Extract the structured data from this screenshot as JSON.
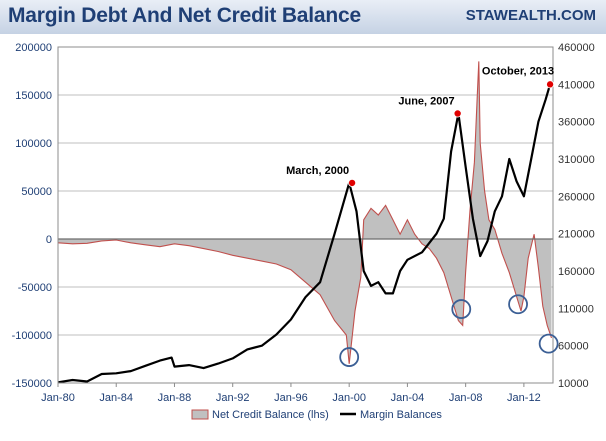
{
  "chart_data": {
    "type": "line",
    "title": "Margin Debt And Net Credit Balance",
    "watermark": "STAWEALTH.COM",
    "x_ticks": [
      "Jan-80",
      "Jan-84",
      "Jan-88",
      "Jan-92",
      "Jan-96",
      "Jan-00",
      "Jan-04",
      "Jan-08",
      "Jan-12"
    ],
    "x_tick_years": [
      1980,
      1984,
      1988,
      1992,
      1996,
      2000,
      2004,
      2008,
      2012
    ],
    "x_range": [
      1980,
      2014
    ],
    "y_left": {
      "ticks": [
        "200000",
        "150000",
        "100000",
        "50000",
        "0",
        "-50000",
        "-100000",
        "-150000"
      ],
      "tick_values": [
        200000,
        150000,
        100000,
        50000,
        0,
        -50000,
        -100000,
        -150000
      ],
      "range": [
        -150000,
        200000
      ]
    },
    "y_right": {
      "ticks": [
        "460000",
        "410000",
        "360000",
        "310000",
        "260000",
        "210000",
        "160000",
        "110000",
        "60000",
        "10000"
      ],
      "tick_values": [
        460000,
        410000,
        360000,
        310000,
        260000,
        210000,
        160000,
        110000,
        60000,
        10000
      ],
      "range": [
        10000,
        460000
      ]
    },
    "series": [
      {
        "name": "Net Credit Balance (lhs)",
        "axis": "left",
        "style": "area",
        "color": "#c0504d",
        "fill": "#c0c0c0",
        "points": [
          [
            1980.0,
            -4000
          ],
          [
            1981.0,
            -5000
          ],
          [
            1982.0,
            -4500
          ],
          [
            1983.0,
            -2000
          ],
          [
            1984.0,
            -1000
          ],
          [
            1985.0,
            -4000
          ],
          [
            1986.0,
            -6000
          ],
          [
            1987.0,
            -8000
          ],
          [
            1988.0,
            -5000
          ],
          [
            1989.0,
            -7000
          ],
          [
            1990.0,
            -10000
          ],
          [
            1991.0,
            -13000
          ],
          [
            1992.0,
            -17000
          ],
          [
            1993.0,
            -20000
          ],
          [
            1994.0,
            -23000
          ],
          [
            1995.0,
            -26000
          ],
          [
            1996.0,
            -32000
          ],
          [
            1997.0,
            -45000
          ],
          [
            1998.0,
            -58000
          ],
          [
            1999.0,
            -85000
          ],
          [
            1999.8,
            -100000
          ],
          [
            2000.0,
            -130000
          ],
          [
            2000.4,
            -75000
          ],
          [
            2000.8,
            -40000
          ],
          [
            2001.0,
            20000
          ],
          [
            2001.5,
            32000
          ],
          [
            2002.0,
            25000
          ],
          [
            2002.5,
            35000
          ],
          [
            2003.0,
            20000
          ],
          [
            2003.5,
            5000
          ],
          [
            2004.0,
            20000
          ],
          [
            2004.5,
            5000
          ],
          [
            2005.0,
            -5000
          ],
          [
            2005.5,
            -10000
          ],
          [
            2006.0,
            -20000
          ],
          [
            2006.5,
            -35000
          ],
          [
            2007.0,
            -60000
          ],
          [
            2007.5,
            -85000
          ],
          [
            2007.8,
            -90000
          ],
          [
            2008.0,
            -35000
          ],
          [
            2008.3,
            30000
          ],
          [
            2008.6,
            80000
          ],
          [
            2008.8,
            150000
          ],
          [
            2008.9,
            185000
          ],
          [
            2009.0,
            100000
          ],
          [
            2009.3,
            50000
          ],
          [
            2009.6,
            20000
          ],
          [
            2010.0,
            10000
          ],
          [
            2010.5,
            -15000
          ],
          [
            2011.0,
            -35000
          ],
          [
            2011.5,
            -60000
          ],
          [
            2011.8,
            -75000
          ],
          [
            2012.0,
            -60000
          ],
          [
            2012.3,
            -20000
          ],
          [
            2012.7,
            5000
          ],
          [
            2013.0,
            -30000
          ],
          [
            2013.3,
            -70000
          ],
          [
            2013.6,
            -90000
          ],
          [
            2013.9,
            -103000
          ]
        ]
      },
      {
        "name": "Margin Balances",
        "axis": "right",
        "style": "line",
        "color": "#000000",
        "points": [
          [
            1980.0,
            11000
          ],
          [
            1981.0,
            14000
          ],
          [
            1982.0,
            12000
          ],
          [
            1983.0,
            22000
          ],
          [
            1984.0,
            23000
          ],
          [
            1985.0,
            26000
          ],
          [
            1986.0,
            33000
          ],
          [
            1987.0,
            40000
          ],
          [
            1987.8,
            44000
          ],
          [
            1988.0,
            32000
          ],
          [
            1989.0,
            34000
          ],
          [
            1990.0,
            30000
          ],
          [
            1991.0,
            36000
          ],
          [
            1992.0,
            43000
          ],
          [
            1993.0,
            55000
          ],
          [
            1994.0,
            60000
          ],
          [
            1995.0,
            75000
          ],
          [
            1996.0,
            95000
          ],
          [
            1997.0,
            125000
          ],
          [
            1998.0,
            145000
          ],
          [
            1999.0,
            210000
          ],
          [
            2000.0,
            278000
          ],
          [
            2000.5,
            240000
          ],
          [
            2001.0,
            160000
          ],
          [
            2001.5,
            140000
          ],
          [
            2002.0,
            145000
          ],
          [
            2002.5,
            130000
          ],
          [
            2003.0,
            130000
          ],
          [
            2003.5,
            160000
          ],
          [
            2004.0,
            175000
          ],
          [
            2005.0,
            185000
          ],
          [
            2006.0,
            210000
          ],
          [
            2006.5,
            230000
          ],
          [
            2007.0,
            320000
          ],
          [
            2007.5,
            371000
          ],
          [
            2008.0,
            300000
          ],
          [
            2008.5,
            230000
          ],
          [
            2009.0,
            180000
          ],
          [
            2009.5,
            200000
          ],
          [
            2010.0,
            240000
          ],
          [
            2010.5,
            260000
          ],
          [
            2011.0,
            310000
          ],
          [
            2011.5,
            280000
          ],
          [
            2012.0,
            260000
          ],
          [
            2012.5,
            310000
          ],
          [
            2013.0,
            360000
          ],
          [
            2013.5,
            390000
          ],
          [
            2013.8,
            410000
          ]
        ]
      }
    ],
    "annotations": [
      {
        "label": "March, 2000",
        "x": 2000.2,
        "value": 278000,
        "axis": "right",
        "marker": "red-dot"
      },
      {
        "label": "June, 2007",
        "x": 2007.45,
        "value": 371000,
        "axis": "right",
        "marker": "red-dot"
      },
      {
        "label": "October, 2013",
        "x": 2013.8,
        "value": 410000,
        "axis": "right",
        "marker": "red-dot"
      }
    ],
    "trough_circles": [
      {
        "x": 2000.0,
        "value": -123000,
        "axis": "left"
      },
      {
        "x": 2007.7,
        "value": -73000,
        "axis": "left"
      },
      {
        "x": 2011.6,
        "value": -68000,
        "axis": "left"
      },
      {
        "x": 2013.7,
        "value": -109000,
        "axis": "left"
      }
    ],
    "legend": {
      "placement": "bottom",
      "entries": [
        "Net Credit Balance (lhs)",
        "Margin Balances"
      ]
    },
    "colors": {
      "title": "#1f3f75",
      "axis_left": "#1f3f75",
      "axis_right": "#333333",
      "grid": "#bfbfbf",
      "marker": "#e00000",
      "circle": "#3b5f95"
    }
  }
}
